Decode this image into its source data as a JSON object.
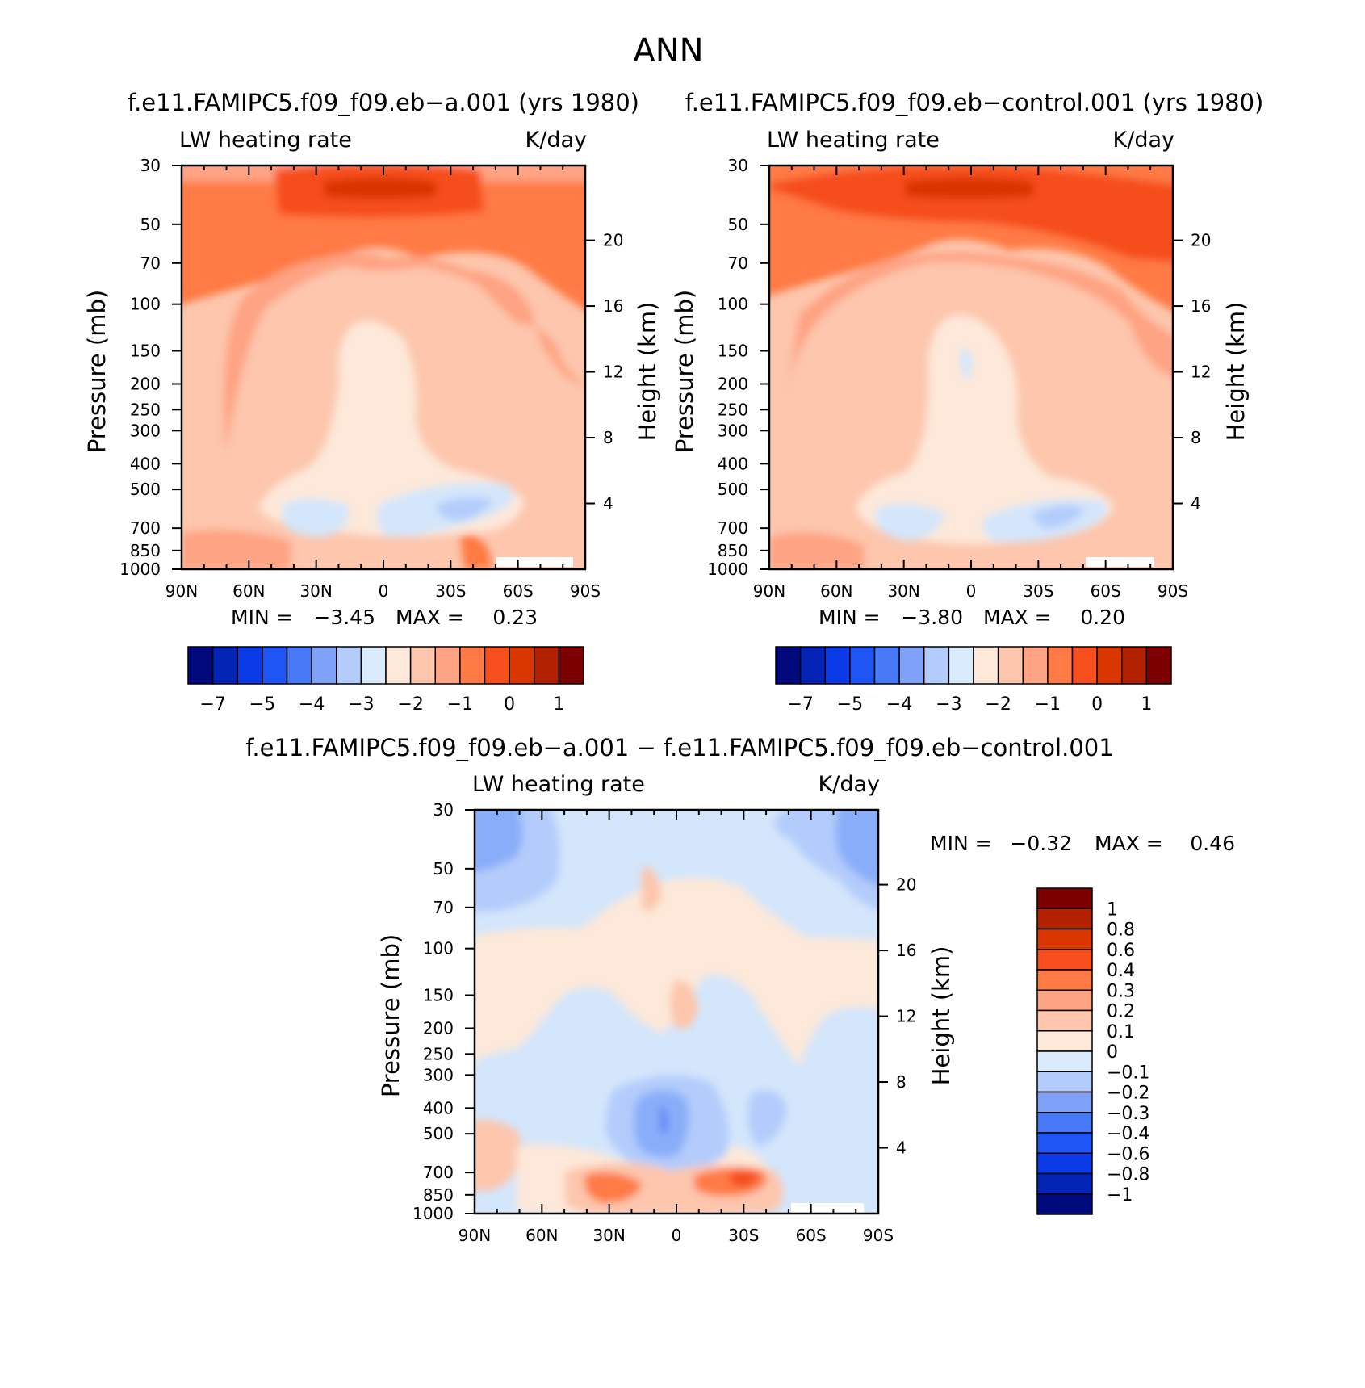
{
  "figure_title": "ANN",
  "region_colors": {
    "strong_warm": "#d93600",
    "warm_dark": "#f64e1c",
    "warm": "#ff7a45",
    "warm_mid": "#fea383",
    "warm_light": "#fdc6ad",
    "pale": "#fde8d9",
    "cool_pale": "#d4e6fb",
    "cool_light": "#b3ccfb",
    "cool": "#8aadf9",
    "cool_mid": "#5c86f7"
  },
  "chart_data": [
    {
      "type": "heatmap",
      "title": "f.e11.FAMIPC5.f09_f09.eb−a.001 (yrs 1980)",
      "left_string": "LW heating rate",
      "right_string": "K/day",
      "ylabel": "Pressure (mb)",
      "ylabel_right": "Height (km)",
      "x_ticks": [
        "90N",
        "60N",
        "30N",
        "0",
        "30S",
        "60S",
        "90S"
      ],
      "x_values": [
        90,
        60,
        30,
        0,
        -30,
        -60,
        -90
      ],
      "y_ticks": [
        "30",
        "50",
        "70",
        "100",
        "150",
        "200",
        "250",
        "300",
        "400",
        "500",
        "700",
        "850",
        "1000"
      ],
      "y_values": [
        30,
        50,
        70,
        100,
        150,
        200,
        250,
        300,
        400,
        500,
        700,
        850,
        1000
      ],
      "height_ticks": [
        "20",
        "16",
        "12",
        "8",
        "4"
      ],
      "height_values": [
        20,
        16,
        12,
        8,
        4
      ],
      "ylim": [
        1000,
        30
      ],
      "xlim": [
        90,
        -90
      ],
      "min_text": "MIN =",
      "min_value": "−3.45",
      "max_text": "MAX =",
      "max_value": "0.23",
      "colorbar": {
        "colors": [
          "#000a7d",
          "#0324b5",
          "#0b3be6",
          "#1f54f5",
          "#4779f7",
          "#7fa2f8",
          "#b3ccfb",
          "#d9ebfc",
          "#fde8d9",
          "#fdc6ad",
          "#fea383",
          "#ff7a45",
          "#f64e1c",
          "#d93600",
          "#b22200",
          "#7d0000"
        ],
        "labels": [
          "−7",
          "−5",
          "−4",
          "−3",
          "−2",
          "−1",
          "0",
          "1"
        ]
      }
    },
    {
      "type": "heatmap",
      "title": "f.e11.FAMIPC5.f09_f09.eb−control.001 (yrs 1980)",
      "left_string": "LW heating rate",
      "right_string": "K/day",
      "ylabel": "Pressure (mb)",
      "ylabel_right": "Height (km)",
      "x_ticks": [
        "90N",
        "60N",
        "30N",
        "0",
        "30S",
        "60S",
        "90S"
      ],
      "x_values": [
        90,
        60,
        30,
        0,
        -30,
        -60,
        -90
      ],
      "y_ticks": [
        "30",
        "50",
        "70",
        "100",
        "150",
        "200",
        "250",
        "300",
        "400",
        "500",
        "700",
        "850",
        "1000"
      ],
      "y_values": [
        30,
        50,
        70,
        100,
        150,
        200,
        250,
        300,
        400,
        500,
        700,
        850,
        1000
      ],
      "height_ticks": [
        "20",
        "16",
        "12",
        "8",
        "4"
      ],
      "height_values": [
        20,
        16,
        12,
        8,
        4
      ],
      "ylim": [
        1000,
        30
      ],
      "xlim": [
        90,
        -90
      ],
      "min_text": "MIN =",
      "min_value": "−3.80",
      "max_text": "MAX =",
      "max_value": "0.20",
      "colorbar": {
        "colors": [
          "#000a7d",
          "#0324b5",
          "#0b3be6",
          "#1f54f5",
          "#4779f7",
          "#7fa2f8",
          "#b3ccfb",
          "#d9ebfc",
          "#fde8d9",
          "#fdc6ad",
          "#fea383",
          "#ff7a45",
          "#f64e1c",
          "#d93600",
          "#b22200",
          "#7d0000"
        ],
        "labels": [
          "−7",
          "−5",
          "−4",
          "−3",
          "−2",
          "−1",
          "0",
          "1"
        ]
      }
    },
    {
      "type": "heatmap",
      "title": "f.e11.FAMIPC5.f09_f09.eb−a.001 − f.e11.FAMIPC5.f09_f09.eb−control.001",
      "left_string": "LW heating rate",
      "right_string": "K/day",
      "ylabel": "Pressure (mb)",
      "ylabel_right": "Height (km)",
      "x_ticks": [
        "90N",
        "60N",
        "30N",
        "0",
        "30S",
        "60S",
        "90S"
      ],
      "x_values": [
        90,
        60,
        30,
        0,
        -30,
        -60,
        -90
      ],
      "y_ticks": [
        "30",
        "50",
        "70",
        "100",
        "150",
        "200",
        "250",
        "300",
        "400",
        "500",
        "700",
        "850",
        "1000"
      ],
      "y_values": [
        30,
        50,
        70,
        100,
        150,
        200,
        250,
        300,
        400,
        500,
        700,
        850,
        1000
      ],
      "height_ticks": [
        "20",
        "16",
        "12",
        "8",
        "4"
      ],
      "height_values": [
        20,
        16,
        12,
        8,
        4
      ],
      "ylim": [
        1000,
        30
      ],
      "xlim": [
        90,
        -90
      ],
      "min_text": "MIN =",
      "min_value": "−0.32",
      "max_text": "MAX =",
      "max_value": "0.46",
      "colorbar": {
        "colors": [
          "#7d0000",
          "#b22200",
          "#d93600",
          "#f64e1c",
          "#ff7a45",
          "#fea383",
          "#fdc6ad",
          "#fde8d9",
          "#d9ebfc",
          "#b3ccfb",
          "#7fa2f8",
          "#4779f7",
          "#1f54f5",
          "#0b3be6",
          "#0324b5",
          "#000a7d"
        ],
        "labels": [
          "1",
          "0.8",
          "0.6",
          "0.4",
          "0.3",
          "0.2",
          "0.1",
          "0",
          "−0.1",
          "−0.2",
          "−0.3",
          "−0.4",
          "−0.6",
          "−0.8",
          "−1"
        ]
      }
    }
  ]
}
